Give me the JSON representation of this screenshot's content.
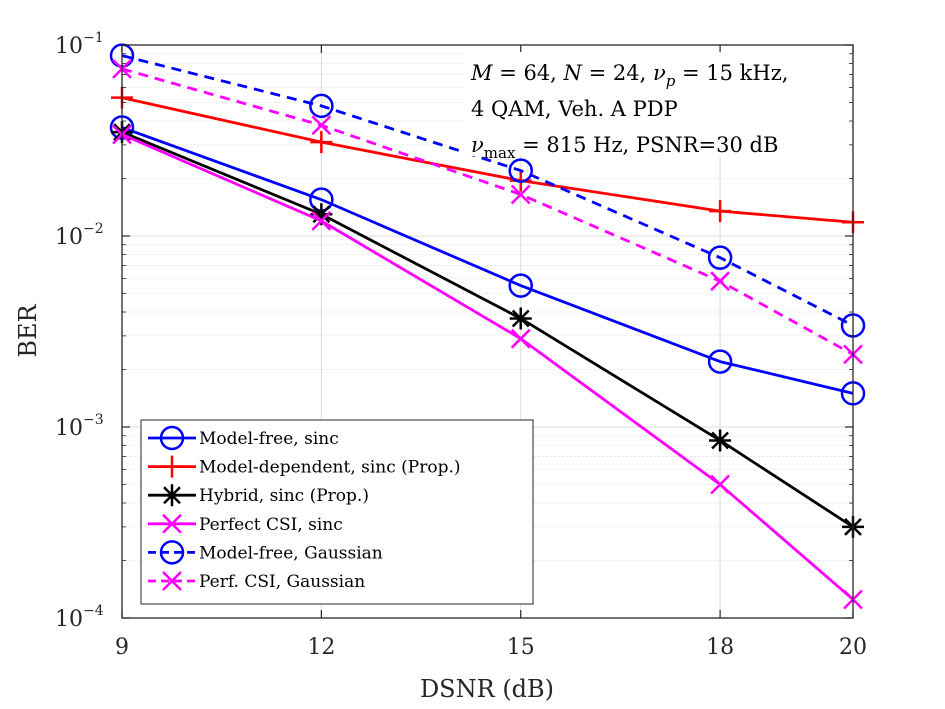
{
  "chart_data": {
    "type": "line",
    "xscale": "linear",
    "yscale": "log",
    "xlabel": "DSNR (dB)",
    "ylabel": "BER",
    "xlim": [
      9,
      20
    ],
    "ylim": [
      0.0001,
      0.1
    ],
    "grid": true,
    "x_ticks": [
      {
        "value": 9,
        "label": "9"
      },
      {
        "value": 12,
        "label": "12"
      },
      {
        "value": 15,
        "label": "15"
      },
      {
        "value": 18,
        "label": "18"
      },
      {
        "value": 20,
        "label": "20"
      }
    ],
    "y_ticks": [
      {
        "value": 0.1,
        "base": "10",
        "exp": "−1"
      },
      {
        "value": 0.01,
        "base": "10",
        "exp": "−2"
      },
      {
        "value": 0.001,
        "base": "10",
        "exp": "−3"
      },
      {
        "value": 0.0001,
        "base": "10",
        "exp": "−4"
      }
    ],
    "annotation": [
      "M = 64, N = 24, νp = 15 kHz,",
      "4 QAM, Veh. A PDP",
      "νmax = 815 Hz, PSNR=30 dB"
    ],
    "legend_position": "bottom-left",
    "x": [
      9,
      12,
      15,
      18,
      20
    ],
    "series": [
      {
        "name": "Model-free, sinc",
        "color": "#0000ff",
        "dash": "solid",
        "marker": "circle",
        "values": [
          0.037,
          0.0155,
          0.0055,
          0.0022,
          0.0015
        ]
      },
      {
        "name": "Model-dependent, sinc (Prop.)",
        "color": "#ff0000",
        "dash": "solid",
        "marker": "plus",
        "values": [
          0.053,
          0.031,
          0.0195,
          0.0135,
          0.0118
        ]
      },
      {
        "name": "Hybrid, sinc (Prop.)",
        "color": "#000000",
        "dash": "solid",
        "marker": "asterisk",
        "values": [
          0.035,
          0.013,
          0.0037,
          0.00085,
          0.0003
        ]
      },
      {
        "name": "Perfect CSI, sinc",
        "color": "#ff00ff",
        "dash": "solid",
        "marker": "cross",
        "values": [
          0.034,
          0.012,
          0.0029,
          0.0005,
          0.000125
        ]
      },
      {
        "name": "Model-free, Gaussian",
        "color": "#0000ff",
        "dash": "dashed",
        "marker": "circle",
        "values": [
          0.088,
          0.048,
          0.022,
          0.0077,
          0.0034
        ]
      },
      {
        "name": "Perf. CSI, Gaussian",
        "color": "#ff00ff",
        "dash": "dashed",
        "marker": "cross",
        "values": [
          0.075,
          0.038,
          0.0165,
          0.0058,
          0.0024
        ]
      }
    ]
  }
}
